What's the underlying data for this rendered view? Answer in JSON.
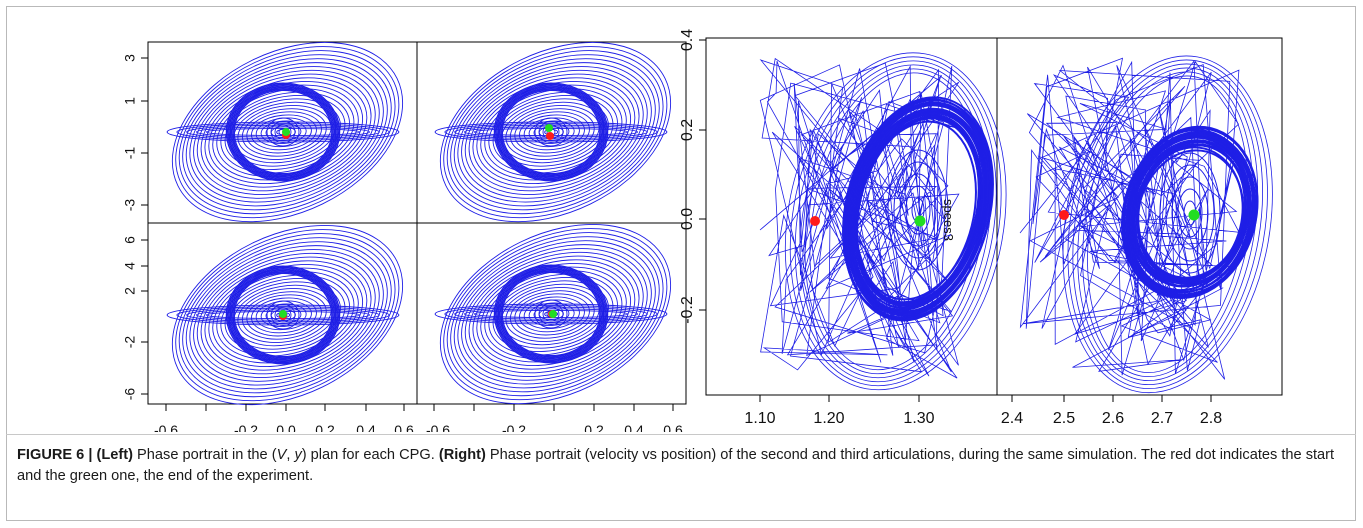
{
  "caption": {
    "figure_label": "FIGURE 6 |",
    "left_label": "(Left)",
    "left_text_before": " Phase portrait in the (",
    "left_math_V": "V",
    "left_math_sep": ", ",
    "left_math_y": "y",
    "left_text_after": ") plan for each CPG. ",
    "right_label": "(Right)",
    "right_text": " Phase portrait (velocity vs position) of the second and third articulations, during the same simulation. The red dot indicates the start and the green one, the end of the experiment."
  },
  "colors": {
    "trajectory": "#1f1fe6",
    "start": "#ff1a1a",
    "end": "#22dd22",
    "axis": "#000000"
  },
  "chart_data": [
    {
      "type": "scatter",
      "panel": "left-top-left",
      "xlim": [
        -0.6,
        0.6
      ],
      "ylim": [
        -3.6,
        3.6
      ],
      "xticks": [],
      "yticks": [
        "3",
        "1",
        "-1",
        "-3"
      ],
      "start_point": [
        0.0,
        -0.1
      ],
      "end_point": [
        0.0,
        0.0
      ]
    },
    {
      "type": "scatter",
      "panel": "left-top-right",
      "xlim": [
        -0.6,
        0.6
      ],
      "ylim": [
        -3.6,
        3.6
      ],
      "xticks": [],
      "yticks": [],
      "start_point": [
        0.0,
        -0.3
      ],
      "end_point": [
        0.0,
        0.1
      ]
    },
    {
      "type": "scatter",
      "panel": "left-bottom-left",
      "xlim": [
        -0.6,
        0.6
      ],
      "ylim": [
        -7.0,
        7.0
      ],
      "xticks": [
        "-0.6",
        "-0.2",
        "0.0",
        "0.2",
        "0.4",
        "0.6"
      ],
      "yticks": [
        "6",
        "4",
        "2",
        "-2",
        "-6"
      ],
      "start_point": [
        0.0,
        0.2
      ],
      "end_point": [
        0.0,
        0.0
      ]
    },
    {
      "type": "scatter",
      "panel": "left-bottom-right",
      "xlim": [
        -0.6,
        0.6
      ],
      "ylim": [
        -7.0,
        7.0
      ],
      "xticks": [
        "-0.6",
        "-0.2",
        "0.2",
        "0.4",
        "0.6"
      ],
      "yticks": [],
      "start_point": [
        0.0,
        0.0
      ],
      "end_point": [
        0.0,
        0.0
      ]
    },
    {
      "type": "scatter",
      "panel": "right-second-articulation",
      "xlim": [
        1.07,
        1.39
      ],
      "ylim": [
        -0.4,
        0.4
      ],
      "xticks": [
        "1.10",
        "1.20",
        "1.30"
      ],
      "yticks": [
        "-0.2",
        "0.0",
        "0.2",
        "0.4"
      ],
      "annotation": "spees3",
      "start_point": [
        1.16,
        -0.005
      ],
      "end_point": [
        1.295,
        -0.005
      ]
    },
    {
      "type": "scatter",
      "panel": "right-third-articulation",
      "xlim": [
        2.38,
        2.88
      ],
      "ylim": [
        -0.4,
        0.4
      ],
      "xticks": [
        "2.4",
        "2.5",
        "2.6",
        "2.7",
        "2.8"
      ],
      "yticks": [],
      "start_point": [
        2.51,
        0.01
      ],
      "end_point": [
        2.78,
        0.005
      ]
    }
  ]
}
